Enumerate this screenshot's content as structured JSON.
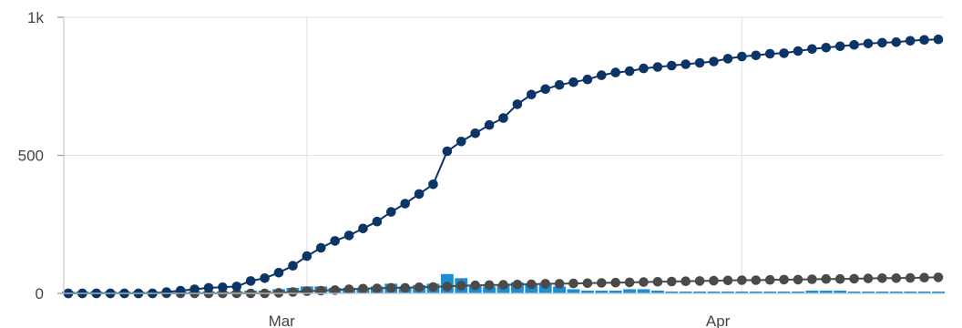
{
  "chart_data": {
    "type": "line",
    "x_type": "date",
    "x_range": [
      "2020-02-13",
      "2020-04-15"
    ],
    "ylim": [
      0,
      1000
    ],
    "y_ticks": [
      {
        "value": 0,
        "label": "0"
      },
      {
        "value": 500,
        "label": "500"
      },
      {
        "value": 1000,
        "label": "1k"
      }
    ],
    "x_ticks": [
      {
        "date": "2020-03-01",
        "label": "Mar"
      },
      {
        "date": "2020-04-01",
        "label": "Apr"
      }
    ],
    "grid": true,
    "legend": "none",
    "x": [
      "2020-02-13",
      "2020-02-14",
      "2020-02-15",
      "2020-02-16",
      "2020-02-17",
      "2020-02-18",
      "2020-02-19",
      "2020-02-20",
      "2020-02-21",
      "2020-02-22",
      "2020-02-23",
      "2020-02-24",
      "2020-02-25",
      "2020-02-26",
      "2020-02-27",
      "2020-02-28",
      "2020-02-29",
      "2020-03-01",
      "2020-03-02",
      "2020-03-03",
      "2020-03-04",
      "2020-03-05",
      "2020-03-06",
      "2020-03-07",
      "2020-03-08",
      "2020-03-09",
      "2020-03-10",
      "2020-03-11",
      "2020-03-12",
      "2020-03-13",
      "2020-03-14",
      "2020-03-15",
      "2020-03-16",
      "2020-03-17",
      "2020-03-18",
      "2020-03-19",
      "2020-03-20",
      "2020-03-21",
      "2020-03-22",
      "2020-03-23",
      "2020-03-24",
      "2020-03-25",
      "2020-03-26",
      "2020-03-27",
      "2020-03-28",
      "2020-03-29",
      "2020-03-30",
      "2020-03-31",
      "2020-04-01",
      "2020-04-02",
      "2020-04-03",
      "2020-04-04",
      "2020-04-05",
      "2020-04-06",
      "2020-04-07",
      "2020-04-08",
      "2020-04-09",
      "2020-04-10",
      "2020-04-11",
      "2020-04-12",
      "2020-04-13",
      "2020-04-14",
      "2020-04-15"
    ],
    "series": [
      {
        "type": "line",
        "color": "#0b3566",
        "values": [
          0,
          0,
          0,
          0,
          0,
          0,
          0,
          5,
          10,
          15,
          20,
          22,
          25,
          45,
          55,
          75,
          100,
          135,
          165,
          190,
          210,
          235,
          260,
          295,
          325,
          360,
          395,
          515,
          550,
          580,
          610,
          635,
          685,
          720,
          740,
          755,
          765,
          775,
          790,
          800,
          805,
          815,
          820,
          825,
          830,
          835,
          840,
          850,
          858,
          862,
          868,
          870,
          878,
          885,
          890,
          895,
          900,
          905,
          908,
          910,
          915,
          918,
          920
        ]
      },
      {
        "type": "line",
        "color": "#4a4a4a",
        "values": [
          0,
          0,
          0,
          0,
          0,
          0,
          0,
          0,
          0,
          0,
          0,
          0,
          0,
          0,
          0,
          2,
          5,
          8,
          10,
          12,
          15,
          17,
          18,
          20,
          20,
          22,
          23,
          25,
          28,
          29,
          30,
          31,
          32,
          33,
          35,
          35,
          36,
          37,
          38,
          39,
          40,
          41,
          42,
          43,
          44,
          45,
          46,
          47,
          48,
          48,
          49,
          50,
          50,
          51,
          52,
          52,
          53,
          54,
          55,
          55,
          56,
          57,
          58
        ]
      },
      {
        "type": "bar",
        "color": "#1a8fd3",
        "values": [
          0,
          0,
          0,
          0,
          0,
          0,
          0,
          3,
          5,
          5,
          5,
          5,
          5,
          10,
          10,
          15,
          20,
          25,
          25,
          20,
          20,
          20,
          25,
          35,
          25,
          30,
          35,
          70,
          55,
          30,
          25,
          30,
          40,
          35,
          35,
          25,
          15,
          10,
          10,
          10,
          15,
          15,
          10,
          5,
          5,
          5,
          5,
          5,
          5,
          5,
          5,
          5,
          5,
          10,
          10,
          10,
          5,
          5,
          5,
          5,
          5,
          5,
          5
        ]
      }
    ]
  }
}
